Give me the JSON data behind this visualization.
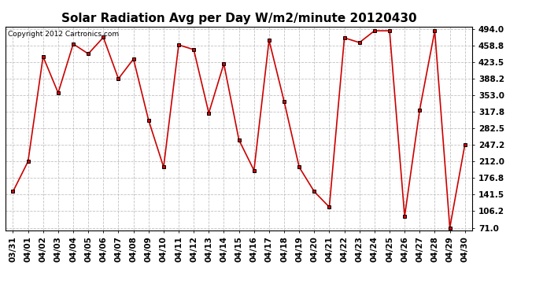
{
  "title": "Solar Radiation Avg per Day W/m2/minute 20120430",
  "copyright": "Copyright 2012 Cartronics.com",
  "dates": [
    "03/31",
    "04/01",
    "04/02",
    "04/03",
    "04/04",
    "04/05",
    "04/06",
    "04/07",
    "04/08",
    "04/09",
    "04/10",
    "04/11",
    "04/12",
    "04/13",
    "04/14",
    "04/15",
    "04/16",
    "04/17",
    "04/18",
    "04/19",
    "04/20",
    "04/21",
    "04/22",
    "04/23",
    "04/24",
    "04/25",
    "04/26",
    "04/27",
    "04/28",
    "04/29",
    "04/30"
  ],
  "values": [
    148,
    212,
    435,
    358,
    462,
    441,
    476,
    388,
    430,
    300,
    200,
    460,
    450,
    315,
    420,
    258,
    193,
    470,
    340,
    200,
    148,
    115,
    475,
    465,
    490,
    490,
    95,
    322,
    490,
    71,
    248
  ],
  "line_color": "#cc0000",
  "marker_color": "#000000",
  "bg_color": "#ffffff",
  "plot_bg_color": "#ffffff",
  "grid_color": "#bbbbbb",
  "yticks": [
    71.0,
    106.2,
    141.5,
    176.8,
    212.0,
    247.2,
    282.5,
    317.8,
    353.0,
    388.2,
    423.5,
    458.8,
    494.0
  ],
  "ymin": 71.0,
  "ymax": 494.0,
  "title_fontsize": 11,
  "tick_fontsize": 7.5,
  "copyright_fontsize": 6.5
}
